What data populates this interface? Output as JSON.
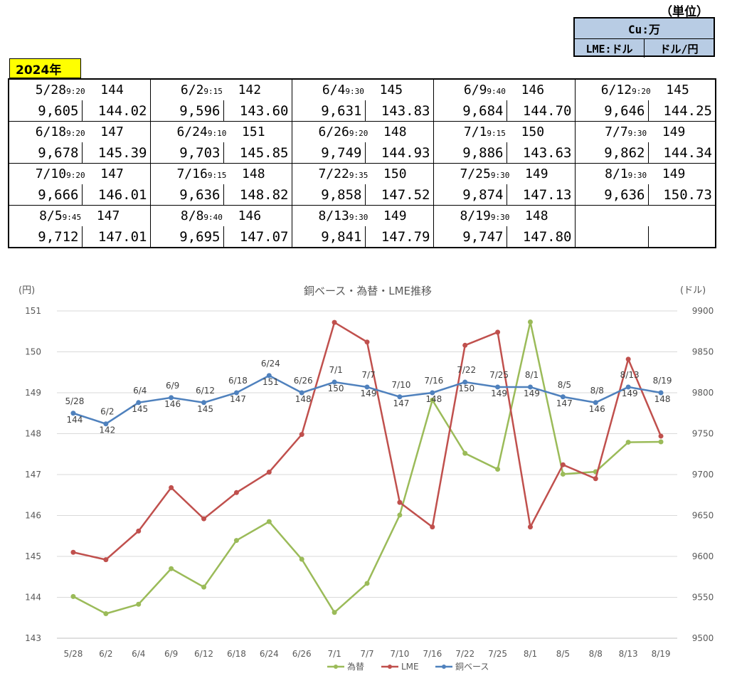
{
  "header": {
    "unit_label": "（単位）",
    "legend_top": "Cu:万",
    "legend_lme": "LME:ドル",
    "legend_fx": "ドル/円",
    "year": "2024年"
  },
  "table_rows": [
    [
      {
        "date": "5/28",
        "time": "9:20",
        "base": "144",
        "lme": "9,605",
        "fx": "144.02"
      },
      {
        "date": "6/2",
        "time": "9:15",
        "base": "142",
        "lme": "9,596",
        "fx": "143.60"
      },
      {
        "date": "6/4",
        "time": "9:30",
        "base": "145",
        "lme": "9,631",
        "fx": "143.83"
      },
      {
        "date": "6/9",
        "time": "9:40",
        "base": "146",
        "lme": "9,684",
        "fx": "144.70"
      },
      {
        "date": "6/12",
        "time": "9:20",
        "base": "145",
        "lme": "9,646",
        "fx": "144.25"
      }
    ],
    [
      {
        "date": "6/18",
        "time": "9:20",
        "base": "147",
        "lme": "9,678",
        "fx": "145.39"
      },
      {
        "date": "6/24",
        "time": "9:10",
        "base": "151",
        "lme": "9,703",
        "fx": "145.85"
      },
      {
        "date": "6/26",
        "time": "9:20",
        "base": "148",
        "lme": "9,749",
        "fx": "144.93"
      },
      {
        "date": "7/1",
        "time": "9:15",
        "base": "150",
        "lme": "9,886",
        "fx": "143.63"
      },
      {
        "date": "7/7",
        "time": "9:30",
        "base": "149",
        "lme": "9,862",
        "fx": "144.34"
      }
    ],
    [
      {
        "date": "7/10",
        "time": "9:20",
        "base": "147",
        "lme": "9,666",
        "fx": "146.01"
      },
      {
        "date": "7/16",
        "time": "9:15",
        "base": "148",
        "lme": "9,636",
        "fx": "148.82"
      },
      {
        "date": "7/22",
        "time": "9:35",
        "base": "150",
        "lme": "9,858",
        "fx": "147.52"
      },
      {
        "date": "7/25",
        "time": "9:30",
        "base": "149",
        "lme": "9,874",
        "fx": "147.13"
      },
      {
        "date": "8/1",
        "time": "9:30",
        "base": "149",
        "lme": "9,636",
        "fx": "150.73"
      }
    ],
    [
      {
        "date": "8/5",
        "time": "9:45",
        "base": "147",
        "lme": "9,712",
        "fx": "147.01"
      },
      {
        "date": "8/8",
        "time": "9:40",
        "base": "146",
        "lme": "9,695",
        "fx": "147.07"
      },
      {
        "date": "8/13",
        "time": "9:30",
        "base": "149",
        "lme": "9,841",
        "fx": "147.79"
      },
      {
        "date": "8/19",
        "time": "9:30",
        "base": "148",
        "lme": "9,747",
        "fx": "147.80"
      },
      {
        "date": "",
        "time": "",
        "base": "",
        "lme": "",
        "fx": ""
      }
    ]
  ],
  "chart_data": {
    "type": "line",
    "title": "銅ベース・為替・LME推移",
    "ylabel_left": "(円)",
    "ylabel_right": "(ドル)",
    "categories": [
      "5/28",
      "6/2",
      "6/4",
      "6/9",
      "6/12",
      "6/18",
      "6/24",
      "6/26",
      "7/1",
      "7/7",
      "7/10",
      "7/16",
      "7/22",
      "7/25",
      "8/1",
      "8/5",
      "8/8",
      "8/13",
      "8/19"
    ],
    "y_left": {
      "min": 143,
      "max": 151,
      "ticks": [
        143,
        144,
        145,
        146,
        147,
        148,
        149,
        150,
        151
      ]
    },
    "y_right": {
      "min": 9500,
      "max": 9900,
      "ticks": [
        9500,
        9550,
        9600,
        9650,
        9700,
        9750,
        9800,
        9850,
        9900
      ]
    },
    "grid": true,
    "legend_position": "bottom",
    "series": [
      {
        "name": "為替",
        "axis": "left",
        "color": "#9bbb59",
        "values": [
          144.02,
          143.6,
          143.83,
          144.7,
          144.25,
          145.39,
          145.85,
          144.93,
          143.63,
          144.34,
          146.01,
          148.82,
          147.52,
          147.13,
          150.73,
          147.01,
          147.07,
          147.79,
          147.8
        ]
      },
      {
        "name": "LME",
        "axis": "right",
        "color": "#c0504d",
        "values": [
          9605,
          9596,
          9631,
          9684,
          9646,
          9678,
          9703,
          9749,
          9886,
          9862,
          9666,
          9636,
          9858,
          9874,
          9636,
          9712,
          9695,
          9841,
          9747
        ]
      },
      {
        "name": "銅ベース",
        "axis": "right",
        "color": "#4f81bd",
        "values": [
          9775,
          9762,
          9788,
          9794,
          9788,
          9800,
          9821,
          9800,
          9813,
          9807,
          9795,
          9800,
          9813,
          9807,
          9807,
          9795,
          9788,
          9807,
          9800
        ],
        "labels": [
          [
            "5/28",
            "144"
          ],
          [
            "6/2",
            "142"
          ],
          [
            "6/4",
            "145"
          ],
          [
            "6/9",
            "146"
          ],
          [
            "6/12",
            "145"
          ],
          [
            "6/18",
            "147"
          ],
          [
            "6/24",
            "151"
          ],
          [
            "6/26",
            "148"
          ],
          [
            "7/1",
            "150"
          ],
          [
            "7/7",
            "149"
          ],
          [
            "7/10",
            "147"
          ],
          [
            "7/16",
            "148"
          ],
          [
            "7/22",
            "150"
          ],
          [
            "7/25",
            "149"
          ],
          [
            "8/1",
            "149"
          ],
          [
            "8/5",
            "147"
          ],
          [
            "8/8",
            "146"
          ],
          [
            "8/13",
            "149"
          ],
          [
            "8/19",
            "148"
          ]
        ]
      }
    ]
  },
  "colors": {
    "legend_bg": "#b8cce4",
    "year_bg": "#ffff00"
  }
}
